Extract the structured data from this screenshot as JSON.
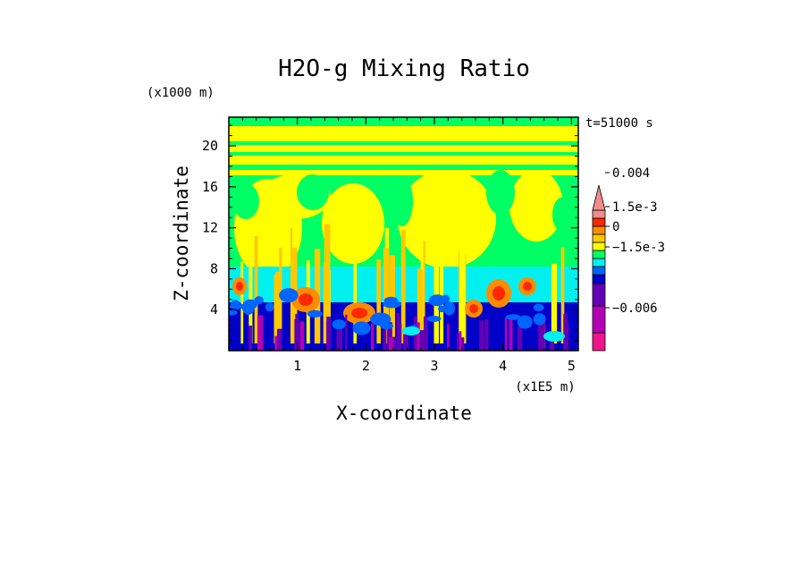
{
  "chart_data": {
    "type": "heatmap",
    "title": "H2O-g Mixing Ratio",
    "xlabel": "X-coordinate",
    "ylabel": "Z-coordinate",
    "x_scale_label": "(x1E5 m)",
    "y_scale_label": "(x1000 m)",
    "time_label": "t=51000 s",
    "xlim": [
      0,
      5.1
    ],
    "ylim": [
      0,
      22.8
    ],
    "x_ticks": [
      "1",
      "2",
      "3",
      "4",
      "5"
    ],
    "y_ticks": [
      "4",
      "8",
      "12",
      "16",
      "20"
    ],
    "colorbar": {
      "labels": [
        "0.004",
        "1.5e-3",
        "0",
        "−1.5e-3",
        "−0.006"
      ],
      "levels": [
        -0.006,
        -0.0015,
        0,
        0.0015,
        0.004
      ],
      "colors": [
        "#f0148c",
        "#b400b4",
        "#6400b4",
        "#0000c8",
        "#0064ff",
        "#00f0f0",
        "#00ff64",
        "#ffff00",
        "#ffc800",
        "#ff8c00",
        "#ff2800",
        "#f08c8c"
      ]
    },
    "field_description_bands": [
      {
        "z_range": [
          0,
          2
        ],
        "dominant": "purple / dark blue"
      },
      {
        "z_range": [
          2,
          6
        ],
        "dominant": "blue with orange plumes"
      },
      {
        "z_range": [
          6,
          8
        ],
        "dominant": "cyan"
      },
      {
        "z_range": [
          8,
          19
        ],
        "dominant": "green and yellow"
      },
      {
        "z_range": [
          19,
          22.8
        ],
        "dominant": "yellow with green streaks"
      }
    ]
  }
}
